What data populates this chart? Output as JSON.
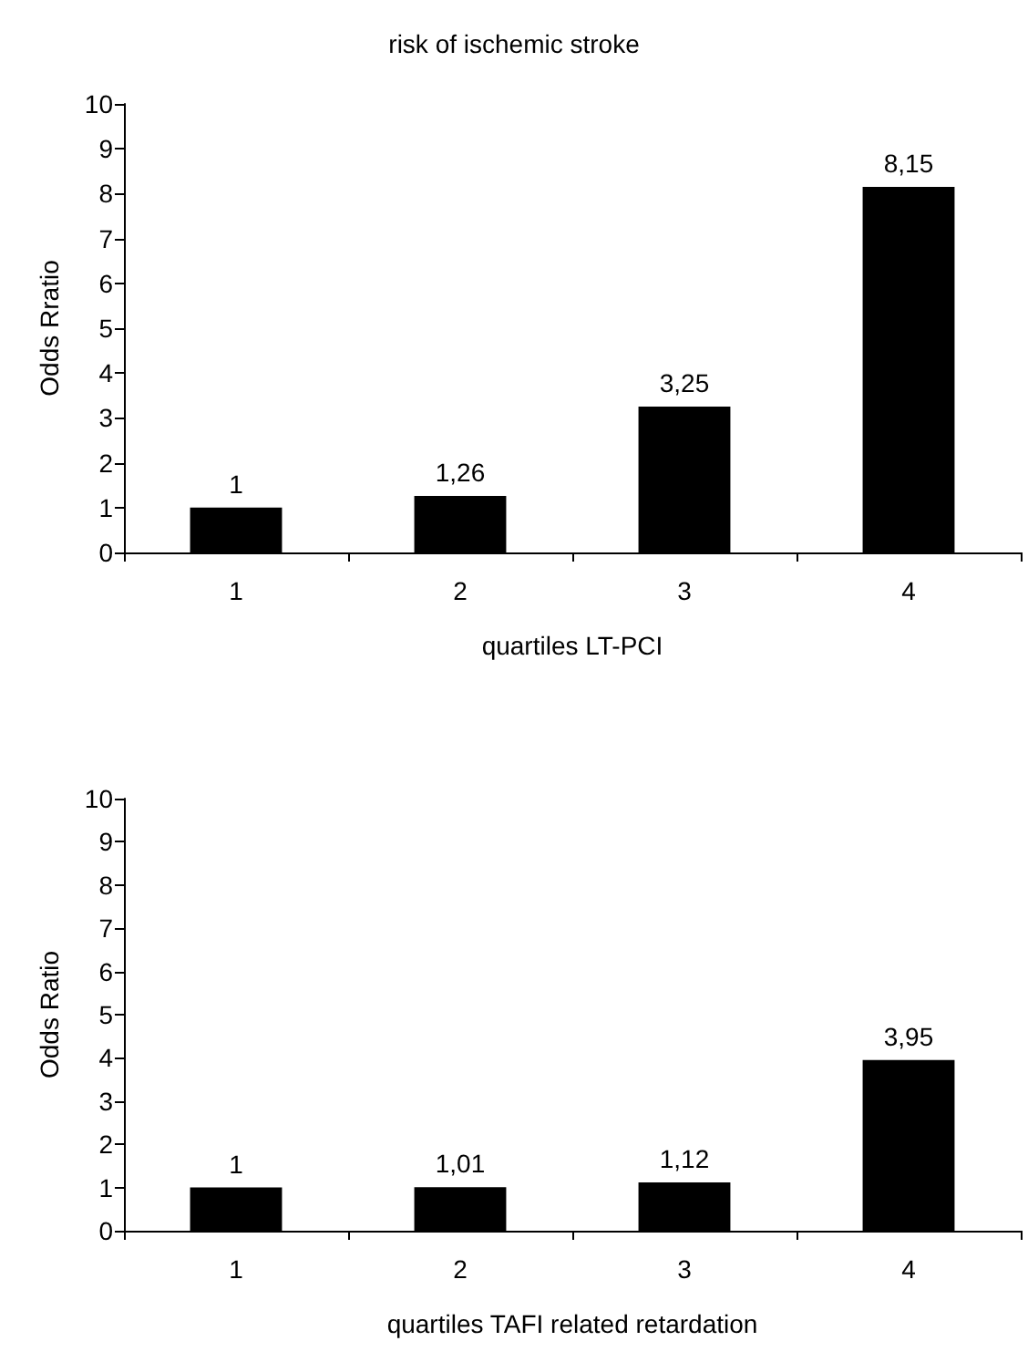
{
  "chart_data": [
    {
      "type": "bar",
      "title": "risk of ischemic stroke",
      "xlabel": "quartiles LT-PCI",
      "ylabel": "Odds Rratio",
      "categories": [
        "1",
        "2",
        "3",
        "4"
      ],
      "values": [
        1,
        1.26,
        3.25,
        8.15
      ],
      "value_labels": [
        "1",
        "1,26",
        "3,25",
        "8,15"
      ],
      "color": "#000000",
      "ylim": [
        0,
        10
      ],
      "yticks": [
        0,
        1,
        2,
        3,
        4,
        5,
        6,
        7,
        8,
        9,
        10
      ],
      "grid": false
    },
    {
      "type": "bar",
      "xlabel": "quartiles TAFI related retardation",
      "ylabel": "Odds Ratio",
      "categories": [
        "1",
        "2",
        "3",
        "4"
      ],
      "values": [
        1,
        1.01,
        1.12,
        3.95
      ],
      "value_labels": [
        "1",
        "1,01",
        "1,12",
        "3,95"
      ],
      "color": "#000000",
      "ylim": [
        0,
        10
      ],
      "yticks": [
        0,
        1,
        2,
        3,
        4,
        5,
        6,
        7,
        8,
        9,
        10
      ],
      "grid": false
    }
  ]
}
